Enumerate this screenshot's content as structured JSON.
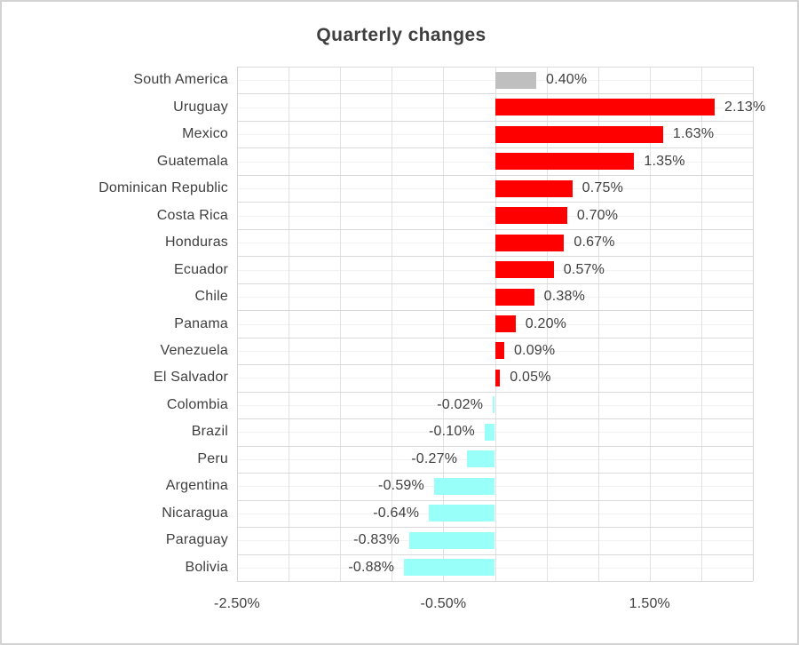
{
  "chart_data": {
    "type": "bar",
    "orientation": "horizontal",
    "title": "Quarterly changes",
    "categories": [
      "South America",
      "Uruguay",
      "Mexico",
      "Guatemala",
      "Dominican Republic",
      "Costa Rica",
      "Honduras",
      "Ecuador",
      "Chile",
      "Panama",
      "Venezuela",
      "El Salvador",
      "Colombia",
      "Brazil",
      "Peru",
      "Argentina",
      "Nicaragua",
      "Paraguay",
      "Bolivia"
    ],
    "values": [
      0.4,
      2.13,
      1.63,
      1.35,
      0.75,
      0.7,
      0.67,
      0.57,
      0.38,
      0.2,
      0.09,
      0.05,
      -0.02,
      -0.1,
      -0.27,
      -0.59,
      -0.64,
      -0.83,
      -0.88
    ],
    "labels": [
      "0.40%",
      "2.13%",
      "1.63%",
      "1.35%",
      "0.75%",
      "0.70%",
      "0.67%",
      "0.57%",
      "0.38%",
      "0.20%",
      "0.09%",
      "0.05%",
      "-0.02%",
      "-0.10%",
      "-0.27%",
      "-0.59%",
      "-0.64%",
      "-0.83%",
      "-0.88%"
    ],
    "bar_colors": [
      "#bfbfbf",
      "#ff0000",
      "#ff0000",
      "#ff0000",
      "#ff0000",
      "#ff0000",
      "#ff0000",
      "#ff0000",
      "#ff0000",
      "#ff0000",
      "#ff0000",
      "#ff0000",
      "#99fff9",
      "#99fff9",
      "#99fff9",
      "#99fff9",
      "#99fff9",
      "#99fff9",
      "#99fff9"
    ],
    "x_ticks": [
      {
        "label": "-2.50%",
        "value": -2.5
      },
      {
        "label": "-0.50%",
        "value": -0.5
      },
      {
        "label": "1.50%",
        "value": 1.5
      }
    ],
    "xlim": [
      -2.5,
      2.5
    ],
    "grid": true,
    "legend": "none",
    "colors": {
      "positive": "#ff0000",
      "negative": "#99fff9",
      "aggregate": "#bfbfbf",
      "text": "#3f3f3f",
      "grid_major_h": "#d9d9d9",
      "grid_minor_h": "#f2f2f2",
      "grid_vertical": "#e2e2e2",
      "plot_border": "#d3d3d3",
      "frame_border": "#d3d3d3"
    }
  }
}
